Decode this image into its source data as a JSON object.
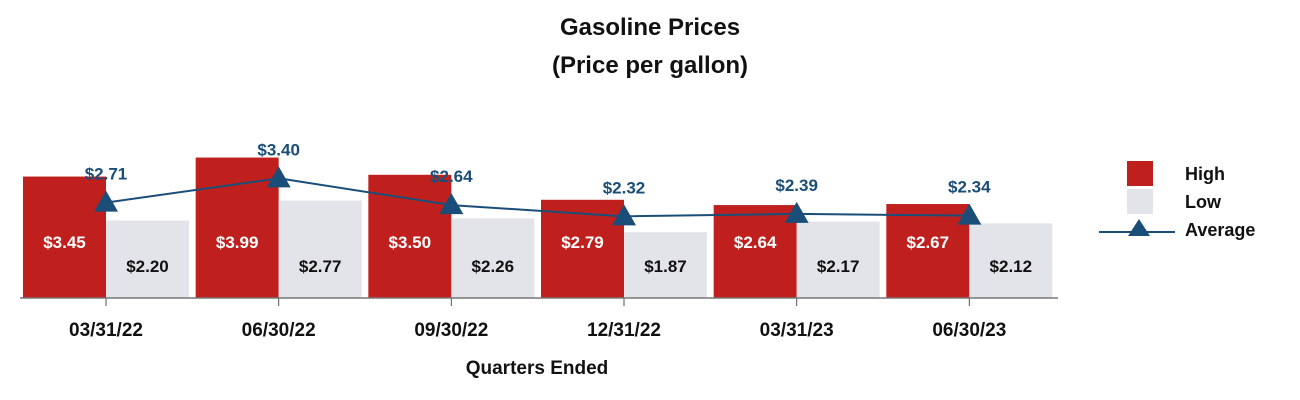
{
  "chart_data": {
    "type": "bar",
    "title": "Gasoline Prices",
    "subtitle": "(Price per gallon)",
    "xlabel": "Quarters Ended",
    "ylabel": "",
    "categories": [
      "03/31/22",
      "06/30/22",
      "09/30/22",
      "12/31/22",
      "03/31/23",
      "06/30/23"
    ],
    "series": [
      {
        "name": "High",
        "kind": "bar",
        "color": "#C0201D",
        "values": [
          3.45,
          3.99,
          3.5,
          2.79,
          2.64,
          2.67
        ],
        "labels": [
          "$3.45",
          "$3.99",
          "$3.50",
          "$2.79",
          "$2.64",
          "$2.67"
        ]
      },
      {
        "name": "Low",
        "kind": "bar",
        "color": "#E3E4E9",
        "values": [
          2.2,
          2.77,
          2.26,
          1.87,
          2.17,
          2.12
        ],
        "labels": [
          "$2.20",
          "$2.77",
          "$2.26",
          "$1.87",
          "$2.17",
          "$2.12"
        ]
      },
      {
        "name": "Average",
        "kind": "line",
        "marker": "triangle",
        "color": "#1A4E79",
        "values": [
          2.71,
          3.4,
          2.64,
          2.32,
          2.39,
          2.34
        ],
        "labels": [
          "$2.71",
          "$3.40",
          "$2.64",
          "$2.32",
          "$2.39",
          "$2.34"
        ]
      }
    ],
    "ylim": [
      0,
      4
    ],
    "grid": false,
    "legend_position": "right"
  }
}
